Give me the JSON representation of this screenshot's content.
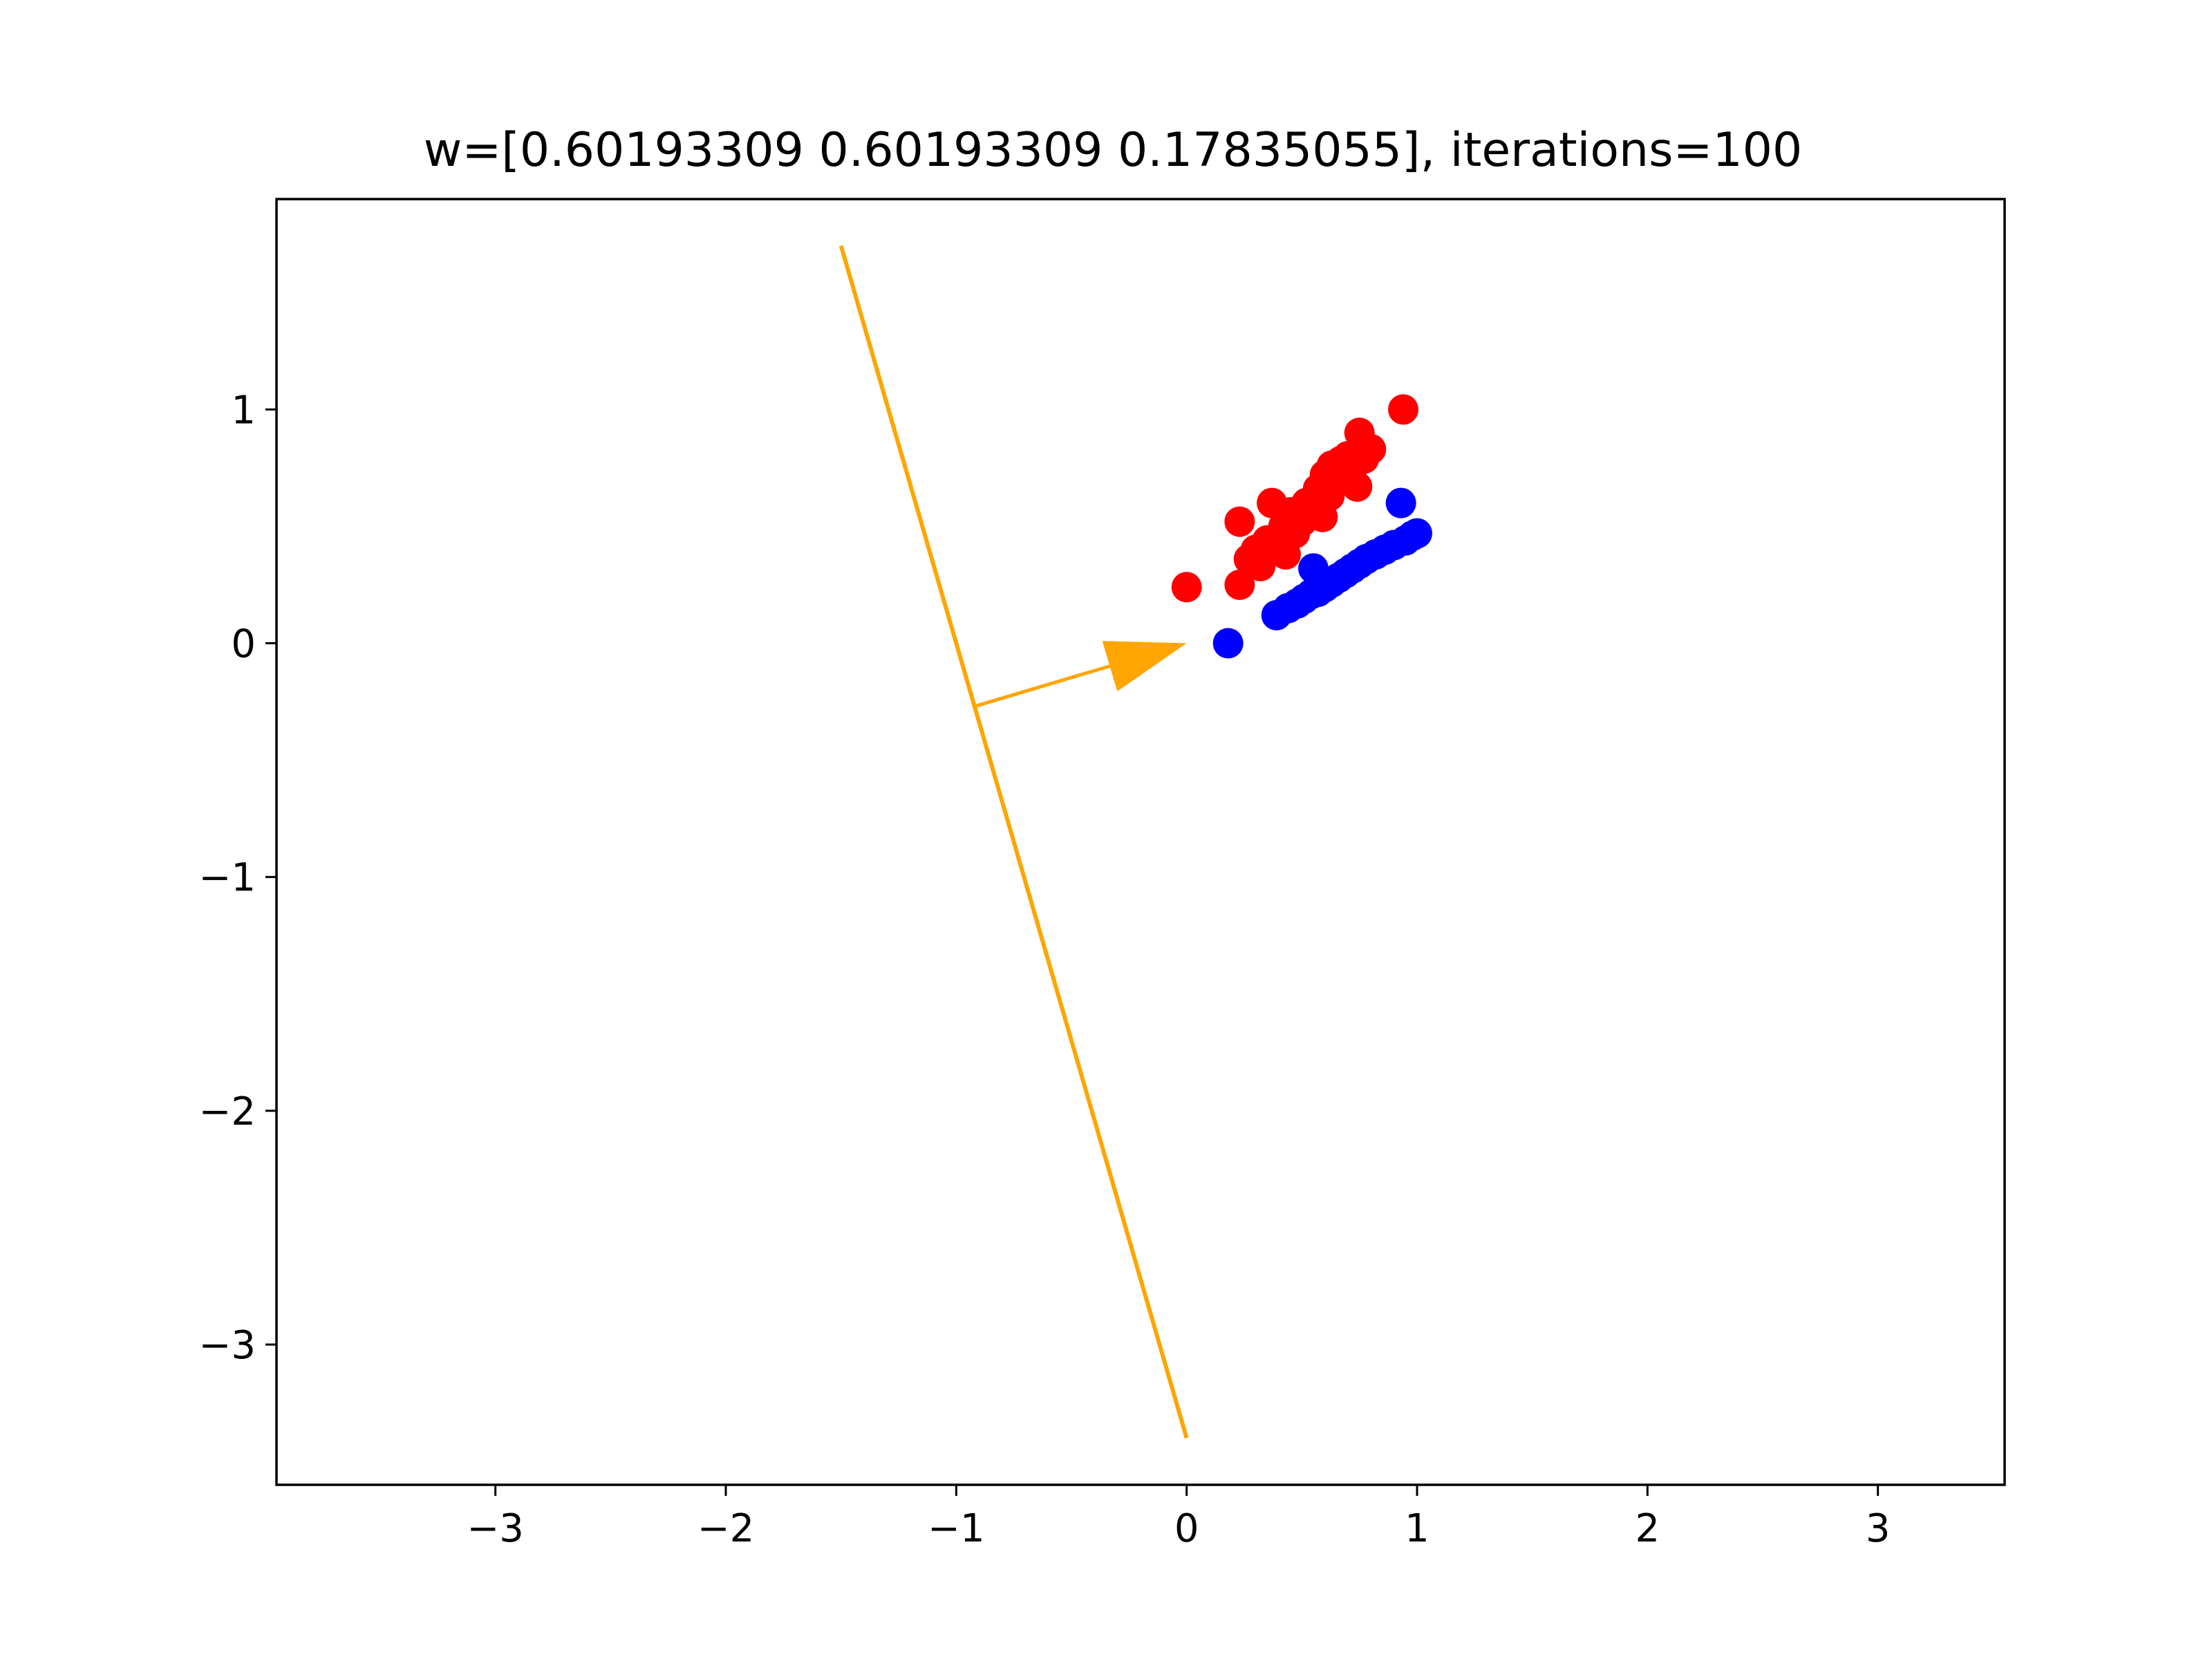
{
  "chart_data": {
    "type": "scatter",
    "title": "w=[0.60193309 0.60193309 0.17835055], iterations=100",
    "xlabel": "",
    "ylabel": "",
    "xlim": [
      -3.95,
      3.55
    ],
    "ylim": [
      -3.6,
      1.9
    ],
    "grid": false,
    "x_ticks": [
      {
        "value": -3,
        "label": "−3"
      },
      {
        "value": -2,
        "label": "−2"
      },
      {
        "value": -1,
        "label": "−1"
      },
      {
        "value": 0,
        "label": "0"
      },
      {
        "value": 1,
        "label": "1"
      },
      {
        "value": 2,
        "label": "2"
      },
      {
        "value": 3,
        "label": "3"
      }
    ],
    "y_ticks": [
      {
        "value": -3,
        "label": "−3"
      },
      {
        "value": -2,
        "label": "−2"
      },
      {
        "value": -1,
        "label": "−1"
      },
      {
        "value": 0,
        "label": "0"
      },
      {
        "value": 1,
        "label": "1"
      }
    ],
    "series": [
      {
        "color": "#ff0000",
        "marker": "circle",
        "points": [
          [
            0.0,
            0.24
          ],
          [
            0.23,
            0.25
          ],
          [
            0.23,
            0.52
          ],
          [
            0.27,
            0.36
          ],
          [
            0.3,
            0.4
          ],
          [
            0.32,
            0.33
          ],
          [
            0.35,
            0.44
          ],
          [
            0.37,
            0.6
          ],
          [
            0.4,
            0.42
          ],
          [
            0.42,
            0.5
          ],
          [
            0.43,
            0.38
          ],
          [
            0.45,
            0.56
          ],
          [
            0.47,
            0.47
          ],
          [
            0.5,
            0.52
          ],
          [
            0.52,
            0.6
          ],
          [
            0.55,
            0.57
          ],
          [
            0.57,
            0.66
          ],
          [
            0.59,
            0.54
          ],
          [
            0.6,
            0.72
          ],
          [
            0.62,
            0.63
          ],
          [
            0.63,
            0.76
          ],
          [
            0.65,
            0.69
          ],
          [
            0.67,
            0.78
          ],
          [
            0.68,
            0.72
          ],
          [
            0.7,
            0.8
          ],
          [
            0.72,
            0.75
          ],
          [
            0.74,
            0.67
          ],
          [
            0.75,
            0.9
          ],
          [
            0.77,
            0.79
          ],
          [
            0.8,
            0.83
          ],
          [
            0.94,
            1.0
          ],
          [
            0.53,
            0.58
          ]
        ]
      },
      {
        "color": "#0000ff",
        "marker": "circle",
        "points": [
          [
            0.18,
            0.0
          ],
          [
            0.39,
            0.12
          ],
          [
            0.44,
            0.15
          ],
          [
            0.48,
            0.17
          ],
          [
            0.51,
            0.19
          ],
          [
            0.54,
            0.21
          ],
          [
            0.55,
            0.32
          ],
          [
            0.57,
            0.22
          ],
          [
            0.6,
            0.24
          ],
          [
            0.63,
            0.26
          ],
          [
            0.66,
            0.28
          ],
          [
            0.69,
            0.3
          ],
          [
            0.72,
            0.32
          ],
          [
            0.75,
            0.34
          ],
          [
            0.78,
            0.36
          ],
          [
            0.82,
            0.38
          ],
          [
            0.86,
            0.4
          ],
          [
            0.9,
            0.42
          ],
          [
            0.93,
            0.6
          ],
          [
            0.95,
            0.44
          ],
          [
            0.98,
            0.46
          ],
          [
            1.0,
            0.47
          ]
        ]
      }
    ],
    "decision_boundary": {
      "color": "#ffa500",
      "from": [
        -1.5,
        1.7
      ],
      "to": [
        0.0,
        -3.4
      ]
    },
    "normal_arrow": {
      "color": "#ffa500",
      "from": [
        -0.92,
        -0.27
      ],
      "to": [
        0.0,
        0.0
      ]
    }
  }
}
